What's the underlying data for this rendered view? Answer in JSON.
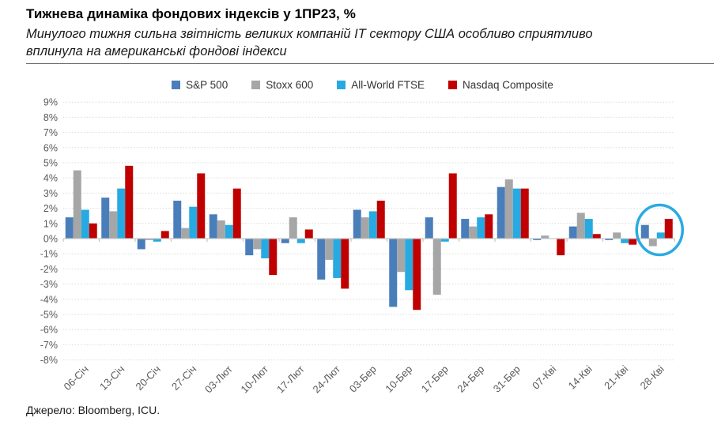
{
  "header": {
    "title": "Тижнева динаміка фондових індексів у 1ПР23, %",
    "subtitle": "Минулого тижня сильна звітність великих компаній ІТ сектору США особливо сприятливо вплинула на американські фондові індекси"
  },
  "footer": {
    "source": "Джерело: Bloomberg, ICU."
  },
  "chart_data": {
    "type": "bar",
    "title": "Тижнева динаміка фондових індексів у 1ПР23, %",
    "categories": [
      "06-Січ",
      "13-Січ",
      "20-Січ",
      "27-Січ",
      "03-Лют",
      "10-Лют",
      "17-Лют",
      "24-Лют",
      "03-Бер",
      "10-Бер",
      "17-Бер",
      "24-Бер",
      "31-Бер",
      "07-Кві",
      "14-Кві",
      "21-Кві",
      "28-Кві"
    ],
    "series": [
      {
        "name": "S&P 500",
        "color": "#4A7EBB",
        "values": [
          1.4,
          2.7,
          -0.7,
          2.5,
          1.6,
          -1.1,
          -0.3,
          -2.7,
          1.9,
          -4.5,
          1.4,
          1.3,
          3.4,
          -0.1,
          0.8,
          -0.1,
          0.9
        ]
      },
      {
        "name": "Stoxx 600",
        "color": "#A6A6A6",
        "values": [
          4.5,
          1.8,
          -0.1,
          0.7,
          1.2,
          -0.7,
          1.4,
          -1.4,
          1.4,
          -2.2,
          -3.7,
          0.8,
          3.9,
          0.2,
          1.7,
          0.4,
          -0.5
        ]
      },
      {
        "name": "All-World FTSE",
        "color": "#27AAE1",
        "values": [
          1.9,
          3.3,
          -0.2,
          2.1,
          0.9,
          -1.3,
          -0.3,
          -2.6,
          1.8,
          -3.4,
          -0.2,
          1.4,
          3.3,
          0.0,
          1.3,
          -0.3,
          0.4
        ]
      },
      {
        "name": "Nasdaq Composite",
        "color": "#C00000",
        "values": [
          1.0,
          4.8,
          0.5,
          4.3,
          3.3,
          -2.4,
          0.6,
          -3.3,
          2.5,
          -4.7,
          4.3,
          1.6,
          3.3,
          -1.1,
          0.3,
          -0.4,
          1.3
        ]
      }
    ],
    "xlabel": "",
    "ylabel": "",
    "ylim": [
      -8,
      9
    ],
    "ytick_step": 1,
    "ytick_suffix": "%",
    "grid": "horizontal-dotted",
    "legend_position": "top",
    "axis_text_color": "#595959",
    "gridline_color": "#d9d9d9",
    "axis_line_color": "#c6c6c6",
    "annotation": {
      "shape": "ellipse",
      "category": "28-Кві",
      "color": "#29ABE2"
    }
  }
}
